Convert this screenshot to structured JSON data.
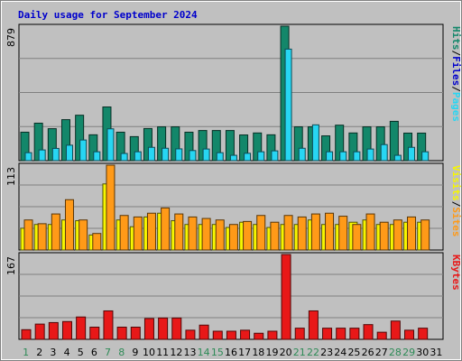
{
  "title": "Daily usage for September 2024",
  "colors": {
    "background": "#c0c0c0",
    "frame": "#ececec",
    "gridline": "#808080",
    "hits": "#13876a",
    "files": "#27d6f3",
    "pages": "#27d6f3",
    "visits": "#f6f600",
    "sites": "#ff9a18",
    "kbytes": "#e81818",
    "weekend_label": "#2e8b57",
    "weekday_label": "#000000"
  },
  "chart_data": {
    "type": "bar",
    "title": "Daily usage for September 2024",
    "days": [
      "1",
      "2",
      "3",
      "4",
      "5",
      "6",
      "7",
      "8",
      "9",
      "10",
      "11",
      "12",
      "13",
      "14",
      "15",
      "16",
      "17",
      "18",
      "19",
      "20",
      "21",
      "22",
      "23",
      "24",
      "25",
      "26",
      "27",
      "28",
      "29",
      "30",
      "31"
    ],
    "weekend_days": [
      "1",
      "7",
      "8",
      "14",
      "15",
      "21",
      "22",
      "28",
      "29"
    ],
    "panels": [
      {
        "id": "hits-files-pages",
        "max_label": "879",
        "ylim": [
          0,
          879
        ],
        "legend": [
          {
            "text": "Pages",
            "color": "#27d6f3"
          },
          {
            "text": "/",
            "color": "#000000"
          },
          {
            "text": "Files",
            "color": "#0000cc"
          },
          {
            "text": "/",
            "color": "#000000"
          },
          {
            "text": "Hits",
            "color": "#13876a"
          }
        ],
        "series": [
          {
            "name": "Hits",
            "color": "#13876a",
            "values": [
              186,
              245,
              209,
              268,
              297,
              169,
              351,
              186,
              157,
              210,
              221,
              221,
              186,
              197,
              197,
              197,
              168,
              181,
              169,
              879,
              221,
              221,
              162,
              232,
              181,
              221,
              221,
              257,
              180,
              180,
              0
            ]
          },
          {
            "name": "Files",
            "color": "#0000cc",
            "values": [
              52,
              70,
              80,
              101,
              135,
              58,
              208,
              47,
              58,
              87,
              81,
              77,
              66,
              76,
              52,
              35,
              48,
              58,
              64,
              729,
              81,
              234,
              58,
              58,
              58,
              76,
              105,
              35,
              87,
              58,
              0
            ]
          },
          {
            "name": "Pages",
            "color": "#27d6f3",
            "values": [
              52,
              70,
              80,
              101,
              135,
              58,
              208,
              47,
              58,
              87,
              81,
              77,
              66,
              76,
              52,
              35,
              48,
              58,
              64,
              729,
              81,
              234,
              58,
              58,
              58,
              76,
              105,
              35,
              87,
              58,
              0
            ]
          }
        ]
      },
      {
        "id": "visits-sites",
        "max_label": "113",
        "ylim": [
          0,
          113
        ],
        "legend": [
          {
            "text": "Sites",
            "color": "#ff9a18"
          },
          {
            "text": "/",
            "color": "#000000"
          },
          {
            "text": "Visits",
            "color": "#f6f600"
          }
        ],
        "series": [
          {
            "name": "Visits",
            "color": "#f6f600",
            "values": [
              29,
              34,
              34,
              40,
              39,
              20,
              88,
              40,
              31,
              44,
              49,
              39,
              34,
              34,
              34,
              30,
              37,
              34,
              30,
              34,
              34,
              40,
              34,
              34,
              37,
              40,
              34,
              34,
              37,
              37,
              0
            ]
          },
          {
            "name": "Sites",
            "color": "#ff9a18",
            "values": [
              40,
              35,
              48,
              67,
              40,
              22,
              113,
              46,
              44,
              49,
              56,
              48,
              44,
              42,
              40,
              34,
              38,
              46,
              37,
              46,
              44,
              48,
              49,
              45,
              34,
              48,
              37,
              40,
              44,
              40,
              0
            ]
          }
        ]
      },
      {
        "id": "kbytes",
        "max_label": "167",
        "ylim": [
          0,
          167
        ],
        "legend": [
          {
            "text": "KBytes",
            "color": "#e81818"
          }
        ],
        "series": [
          {
            "name": "KBytes",
            "color": "#e81818",
            "values": [
              19,
              30,
              33,
              35,
              44,
              24,
              56,
              24,
              24,
              41,
              42,
              42,
              18,
              28,
              16,
              16,
              18,
              12,
              16,
              167,
              22,
              56,
              22,
              22,
              22,
              29,
              14,
              36,
              18,
              22,
              0
            ]
          }
        ]
      }
    ]
  }
}
